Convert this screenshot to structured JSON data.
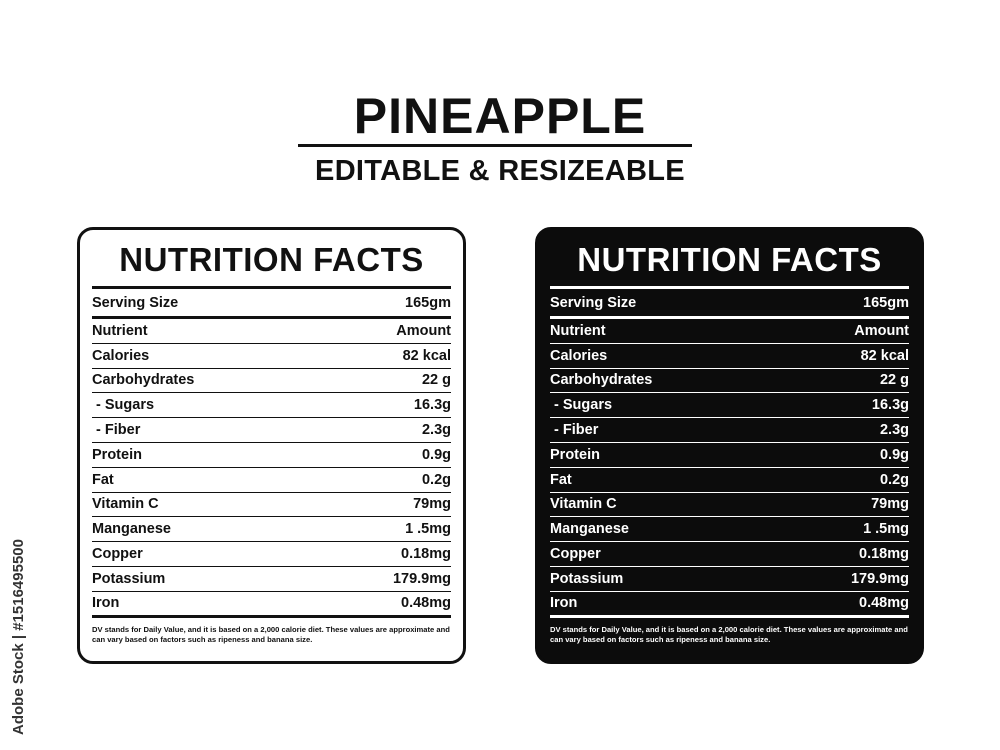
{
  "header": {
    "title": "PINEAPPLE",
    "subtitle": "EDITABLE & RESIZEABLE"
  },
  "label": {
    "title": "NUTRITION FACTS",
    "serving_label": "Serving Size",
    "serving_value": "165gm",
    "rows": [
      {
        "name": "Nutrient",
        "value": "Amount"
      },
      {
        "name": "Calories",
        "value": "82 kcal"
      },
      {
        "name": "Carbohydrates",
        "value": "22 g"
      },
      {
        "name": " - Sugars",
        "value": "16.3g"
      },
      {
        "name": " - Fiber",
        "value": "2.3g"
      },
      {
        "name": "Protein",
        "value": "0.9g"
      },
      {
        "name": "Fat",
        "value": "0.2g"
      },
      {
        "name": "Vitamin C",
        "value": "79mg"
      },
      {
        "name": "Manganese",
        "value": "1 .5mg"
      },
      {
        "name": "Copper",
        "value": "0.18mg"
      },
      {
        "name": "Potassium",
        "value": "179.9mg"
      },
      {
        "name": "Iron",
        "value": "0.48mg"
      }
    ],
    "note": "DV stands for Daily Value, and it is based on a 2,000 calorie diet. These values are approximate and can vary based on factors such as ripeness and banana size."
  },
  "stock_id": "Adobe Stock | #1516495500",
  "colors": {
    "light_card_bg": "#ffffff",
    "dark_card_bg": "#0c0c0c",
    "text": "#111111"
  }
}
